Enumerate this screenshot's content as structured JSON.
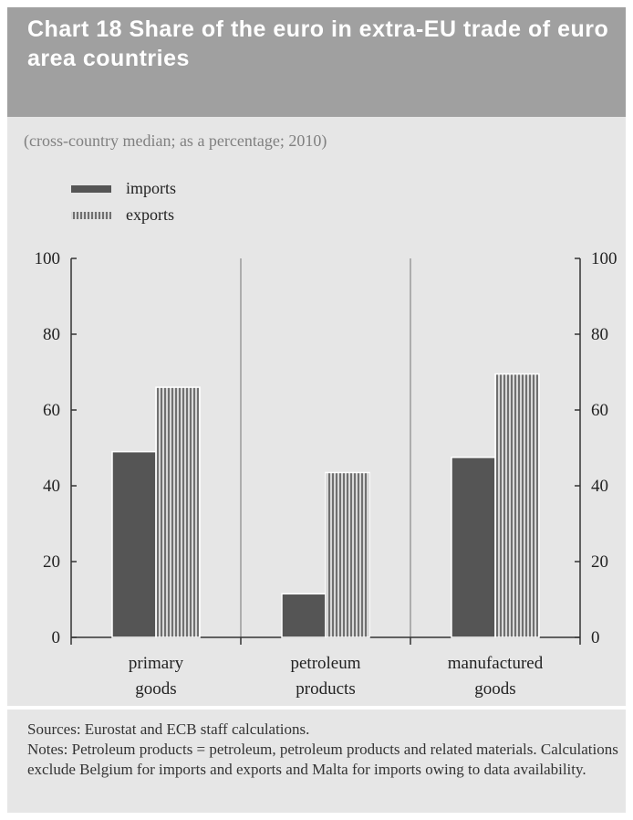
{
  "header": {
    "title": "Chart 18 Share of the euro in extra-EU trade of euro area countries",
    "subtitle": "(cross-country median; as a percentage; 2010)"
  },
  "chart_data": {
    "type": "bar",
    "categories": [
      "primary goods",
      "petroleum products",
      "manufactured goods"
    ],
    "category_lines": [
      [
        "primary",
        "goods"
      ],
      [
        "petroleum",
        "products"
      ],
      [
        "manufactured",
        "goods"
      ]
    ],
    "series": [
      {
        "name": "imports",
        "values": [
          49,
          11.5,
          47.5
        ],
        "color": "#555555"
      },
      {
        "name": "exports",
        "values": [
          66,
          43.5,
          69.5
        ],
        "color": "#9a9a9a",
        "pattern": "vertical-stripes"
      }
    ],
    "ylim": [
      0,
      100
    ],
    "yticks": [
      0,
      20,
      40,
      60,
      80,
      100
    ],
    "secondary_yaxis": true,
    "legend_position": "top-left",
    "vertical_grid": true
  },
  "footer": {
    "sources": "Sources: Eurostat and ECB staff calculations.",
    "notes": "Notes: Petroleum products = petroleum, petroleum products and related materials. Calculations exclude Belgium for imports and exports and Malta for imports owing to data availability."
  }
}
